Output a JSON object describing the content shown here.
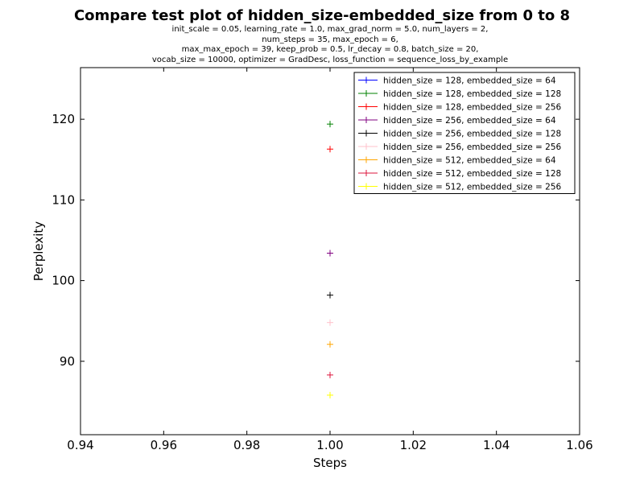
{
  "chart_data": {
    "type": "scatter",
    "title": "Compare test plot of hidden_size-embedded_size from 0 to 8",
    "subtitle_lines": [
      "init_scale = 0.05, learning_rate = 1.0, max_grad_norm = 5.0, num_layers = 2,",
      "num_steps = 35, max_epoch = 6,",
      "max_max_epoch = 39, keep_prob = 0.5, lr_decay = 0.8, batch_size = 20,",
      "vocab_size = 10000, optimizer = GradDesc, loss_function = sequence_loss_by_example"
    ],
    "xlabel": "Steps",
    "ylabel": "Perplexity",
    "xlim": [
      0.94,
      1.06
    ],
    "ylim": [
      80.9,
      126.4
    ],
    "xticks": [
      "0.94",
      "0.96",
      "0.98",
      "1.00",
      "1.02",
      "1.04",
      "1.06"
    ],
    "xtick_values": [
      0.94,
      0.96,
      0.98,
      1.0,
      1.02,
      1.04,
      1.06
    ],
    "yticks": [
      "90",
      "100",
      "110",
      "120"
    ],
    "ytick_values": [
      90,
      100,
      110,
      120
    ],
    "grid": false,
    "legend_position": "top-right",
    "series": [
      {
        "name": "hidden_size = 128, embedded_size = 64",
        "color": "#0000ff",
        "x": [
          1.0
        ],
        "y": [
          null
        ]
      },
      {
        "name": "hidden_size = 128, embedded_size = 128",
        "color": "#008000",
        "x": [
          1.0
        ],
        "y": [
          119.4
        ]
      },
      {
        "name": "hidden_size = 128, embedded_size = 256",
        "color": "#ff0000",
        "x": [
          1.0
        ],
        "y": [
          116.3
        ]
      },
      {
        "name": "hidden_size = 256, embedded_size = 64",
        "color": "#800080",
        "x": [
          1.0
        ],
        "y": [
          103.4
        ]
      },
      {
        "name": "hidden_size = 256, embedded_size = 128",
        "color": "#000000",
        "x": [
          1.0
        ],
        "y": [
          98.2
        ]
      },
      {
        "name": "hidden_size = 256, embedded_size = 256",
        "color": "#ffc0cb",
        "x": [
          1.0
        ],
        "y": [
          94.8
        ]
      },
      {
        "name": "hidden_size = 512, embedded_size = 64",
        "color": "#ffa500",
        "x": [
          1.0
        ],
        "y": [
          92.1
        ]
      },
      {
        "name": "hidden_size = 512, embedded_size = 128",
        "color": "#dc143c",
        "x": [
          1.0
        ],
        "y": [
          88.3
        ]
      },
      {
        "name": "hidden_size = 512, embedded_size = 256",
        "color": "#ffff00",
        "x": [
          1.0
        ],
        "y": [
          85.8
        ]
      }
    ]
  }
}
